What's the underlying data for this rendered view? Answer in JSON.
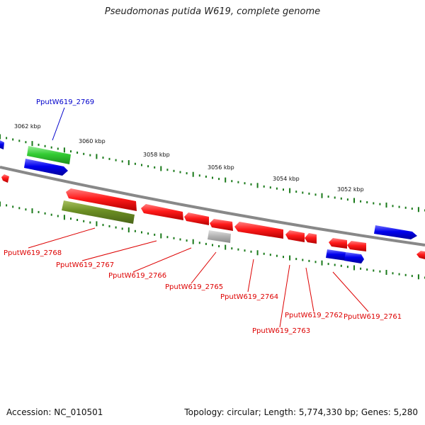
{
  "title": "Pseudomonas putida W619, complete genome",
  "footer": {
    "accession": "Accession: NC_010501",
    "summary": "Topology: circular; Length: 5,774,330 bp; Genes: 5,280"
  },
  "colors": {
    "forward": "#ff0000",
    "reverse": "#0000ee",
    "green": "#33cc33",
    "olive": "#6b8e23",
    "pseudo": "#b5b5b5",
    "tick": "#1a7a1a",
    "backbone": "#888888",
    "label_red": "#dd0000",
    "label_blue": "#0000cc"
  },
  "ticks": [
    {
      "label": "3062 kbp"
    },
    {
      "label": "3060 kbp"
    },
    {
      "label": "3058 kbp"
    },
    {
      "label": "3056 kbp"
    },
    {
      "label": "3054 kbp"
    },
    {
      "label": "3052 kbp"
    }
  ],
  "gene_labels": [
    {
      "text": "PputW619_2769",
      "color": "blue"
    },
    {
      "text": "PputW619_2768",
      "color": "red"
    },
    {
      "text": "PputW619_2767",
      "color": "red"
    },
    {
      "text": "PputW619_2766",
      "color": "red"
    },
    {
      "text": "PputW619_2765",
      "color": "red"
    },
    {
      "text": "PputW619_2764",
      "color": "red"
    },
    {
      "text": "PputW619_2763",
      "color": "red"
    },
    {
      "text": "PputW619_2762",
      "color": "red"
    },
    {
      "text": "PputW619_2761",
      "color": "red"
    }
  ]
}
